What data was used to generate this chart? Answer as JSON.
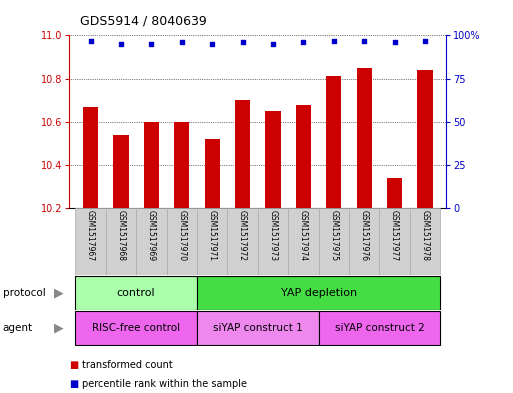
{
  "title": "GDS5914 / 8040639",
  "samples": [
    "GSM1517967",
    "GSM1517968",
    "GSM1517969",
    "GSM1517970",
    "GSM1517971",
    "GSM1517972",
    "GSM1517973",
    "GSM1517974",
    "GSM1517975",
    "GSM1517976",
    "GSM1517977",
    "GSM1517978"
  ],
  "transformed_count": [
    10.67,
    10.54,
    10.6,
    10.6,
    10.52,
    10.7,
    10.65,
    10.68,
    10.81,
    10.85,
    10.34,
    10.84
  ],
  "percentile_rank": [
    97,
    95,
    95,
    96,
    95,
    96,
    95,
    96,
    97,
    97,
    96,
    97
  ],
  "ylim_left": [
    10.2,
    11.0
  ],
  "ylim_right": [
    0,
    100
  ],
  "yticks_left": [
    10.2,
    10.4,
    10.6,
    10.8,
    11.0
  ],
  "yticks_right": [
    0,
    25,
    50,
    75,
    100
  ],
  "ytick_labels_right": [
    "0",
    "25",
    "50",
    "75",
    "100%"
  ],
  "bar_color": "#cc0000",
  "dot_color": "#0000cc",
  "bar_width": 0.5,
  "protocol_groups": [
    {
      "label": "control",
      "start": 0,
      "end": 3,
      "color": "#aaffaa"
    },
    {
      "label": "YAP depletion",
      "start": 4,
      "end": 11,
      "color": "#44dd44"
    }
  ],
  "agent_groups": [
    {
      "label": "RISC-free control",
      "start": 0,
      "end": 3,
      "color": "#ee66ee"
    },
    {
      "label": "siYAP construct 1",
      "start": 4,
      "end": 7,
      "color": "#ee88ee"
    },
    {
      "label": "siYAP construct 2",
      "start": 8,
      "end": 11,
      "color": "#ee66ee"
    }
  ],
  "legend_items": [
    {
      "label": "transformed count",
      "color": "#cc0000"
    },
    {
      "label": "percentile rank within the sample",
      "color": "#0000cc"
    }
  ],
  "left_axis_color": "#cc0000",
  "right_axis_color": "#0000cc",
  "sample_bg_color": "#d0d0d0",
  "sample_border_color": "#aaaaaa"
}
